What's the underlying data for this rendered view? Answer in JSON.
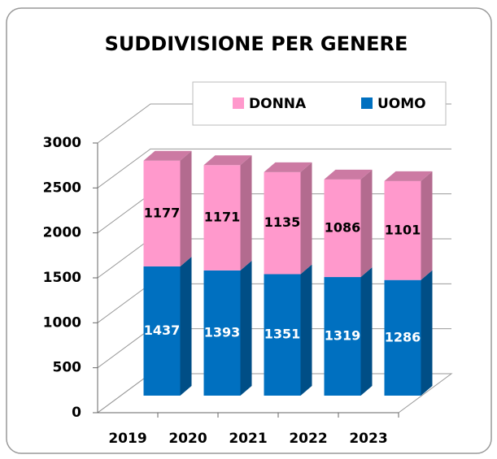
{
  "chart_data": {
    "type": "bar",
    "stacked": true,
    "title": "SUDDIVISIONE PER GENERE",
    "categories": [
      "2019",
      "2020",
      "2021",
      "2022",
      "2023"
    ],
    "series": [
      {
        "name": "UOMO",
        "color": "#0070c0",
        "values": [
          1437,
          1393,
          1351,
          1319,
          1286
        ]
      },
      {
        "name": "DONNA",
        "color": "#ff99cc",
        "values": [
          1177,
          1171,
          1135,
          1086,
          1101
        ]
      }
    ],
    "ylim": [
      0,
      3000
    ],
    "yticks": [
      0,
      500,
      1000,
      1500,
      2000,
      2500,
      3000
    ],
    "grid": true,
    "legend": "top"
  }
}
